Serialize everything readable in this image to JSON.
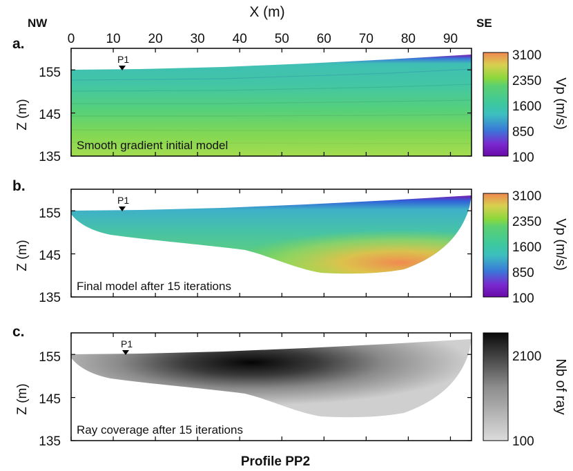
{
  "figure": {
    "orient_left": "NW",
    "orient_right": "SE",
    "x_axis_label": "X (m)",
    "x_ticks": [
      "0",
      "10",
      "20",
      "30",
      "40",
      "50",
      "60",
      "70",
      "80",
      "90"
    ],
    "footer": "Profile PP2",
    "marker_label": "P1"
  },
  "panels": [
    {
      "letter": "a.",
      "caption": "Smooth gradient initial model",
      "ylabel": "Z (m)",
      "yticks": [
        "155",
        "145",
        "135"
      ],
      "colorbar": {
        "label": "Vp (m/s)",
        "ticks": [
          "3100",
          "2350",
          "1600",
          "850",
          "100"
        ],
        "colors": [
          "#f08850",
          "#8ad83c",
          "#3cc8a0",
          "#3a78d8",
          "#6a0aa8"
        ]
      }
    },
    {
      "letter": "b.",
      "caption": "Final model after 15 iterations",
      "ylabel": "Z (m)",
      "yticks": [
        "155",
        "145",
        "135"
      ],
      "colorbar": {
        "label": "Vp (m/s)",
        "ticks": [
          "3100",
          "2350",
          "1600",
          "850",
          "100"
        ],
        "colors": [
          "#f08850",
          "#8ad83c",
          "#3cc8a0",
          "#3a78d8",
          "#6a0aa8"
        ]
      }
    },
    {
      "letter": "c.",
      "caption": "Ray coverage after 15 iterations",
      "ylabel": "Z (m)",
      "yticks": [
        "155",
        "145",
        "135"
      ],
      "colorbar": {
        "label": "Nb of ray",
        "ticks": [
          "2100",
          "100"
        ],
        "colors": [
          "#0a0a0a",
          "#dcdcdc"
        ]
      }
    }
  ],
  "chart_data": [
    {
      "type": "heatmap",
      "title": "Smooth gradient initial model",
      "xlabel": "X (m)",
      "ylabel": "Z (m)",
      "xlim": [
        0,
        95
      ],
      "ylim": [
        135,
        160
      ],
      "xticks": [
        0,
        10,
        20,
        30,
        40,
        50,
        60,
        70,
        80,
        90
      ],
      "yticks": [
        155,
        145,
        135
      ],
      "colorbar": {
        "label": "Vp (m/s)",
        "range": [
          100,
          3100
        ],
        "ticks": [
          100,
          850,
          1600,
          2350,
          3100
        ]
      },
      "surface_elevation": {
        "x": [
          0,
          20,
          40,
          60,
          80,
          95
        ],
        "z": [
          155.8,
          156.0,
          156.6,
          157.4,
          158.4,
          159.2
        ]
      },
      "velocity_vs_depth_below_surface": {
        "depth": [
          0,
          1,
          3,
          8,
          14,
          20
        ],
        "vp": [
          100,
          1100,
          1550,
          1750,
          1950,
          2200
        ]
      },
      "marker": {
        "label": "P1",
        "x": 12.3
      }
    },
    {
      "type": "heatmap",
      "title": "Final model after 15 iterations",
      "xlabel": "X (m)",
      "ylabel": "Z (m)",
      "xlim": [
        0,
        95
      ],
      "ylim": [
        135,
        160
      ],
      "xticks": [
        0,
        10,
        20,
        30,
        40,
        50,
        60,
        70,
        80,
        90
      ],
      "yticks": [
        155,
        145,
        135
      ],
      "colorbar": {
        "label": "Vp (m/s)",
        "range": [
          100,
          3100
        ],
        "ticks": [
          100,
          850,
          1600,
          2350,
          3100
        ]
      },
      "surface_elevation": {
        "x": [
          0,
          20,
          40,
          60,
          80,
          95
        ],
        "z": [
          155.8,
          156.0,
          156.6,
          157.4,
          158.4,
          159.2
        ]
      },
      "model_bottom": {
        "x": [
          0,
          5,
          15,
          25,
          35,
          45,
          52,
          57,
          62,
          70,
          80,
          88,
          93,
          95
        ],
        "z": [
          154.5,
          150.5,
          148.0,
          146.5,
          145.0,
          143.7,
          142.0,
          141.1,
          141.3,
          142.2,
          144.0,
          147.5,
          153.0,
          157.0
        ]
      },
      "high_velocity_zone": {
        "x_range": [
          65,
          95
        ],
        "vp_max": 3100
      },
      "marker": {
        "label": "P1",
        "x": 12.3
      }
    },
    {
      "type": "heatmap",
      "title": "Ray coverage after 15 iterations",
      "xlabel": "X (m)",
      "ylabel": "Z (m)",
      "xlim": [
        0,
        95
      ],
      "ylim": [
        135,
        160
      ],
      "xticks": [
        0,
        10,
        20,
        30,
        40,
        50,
        60,
        70,
        80,
        90
      ],
      "yticks": [
        155,
        145,
        135
      ],
      "colorbar": {
        "label": "Nb of ray",
        "range": [
          100,
          2100
        ],
        "ticks": [
          100,
          2100
        ]
      },
      "max_coverage_center": {
        "x": 40,
        "z": 152
      },
      "marker": {
        "label": "P1",
        "x": 12.3
      }
    }
  ]
}
